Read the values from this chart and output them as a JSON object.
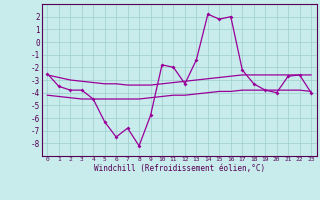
{
  "x": [
    0,
    1,
    2,
    3,
    4,
    5,
    6,
    7,
    8,
    9,
    10,
    11,
    12,
    13,
    14,
    15,
    16,
    17,
    18,
    19,
    20,
    21,
    22,
    23
  ],
  "line_main": [
    -2.5,
    -3.5,
    -3.8,
    -3.8,
    -4.5,
    -6.3,
    -7.5,
    -6.8,
    -8.2,
    -5.8,
    -1.8,
    -2.0,
    -3.3,
    -1.4,
    2.2,
    1.8,
    2.0,
    -2.2,
    -3.3,
    -3.8,
    -4.0,
    -2.7,
    -2.6,
    -4.0
  ],
  "line_upper": [
    -2.6,
    -2.8,
    -3.0,
    -3.1,
    -3.2,
    -3.3,
    -3.3,
    -3.4,
    -3.4,
    -3.4,
    -3.3,
    -3.2,
    -3.1,
    -3.0,
    -2.9,
    -2.8,
    -2.7,
    -2.6,
    -2.6,
    -2.6,
    -2.6,
    -2.6,
    -2.6,
    -2.6
  ],
  "line_lower": [
    -4.2,
    -4.3,
    -4.4,
    -4.5,
    -4.5,
    -4.5,
    -4.5,
    -4.5,
    -4.5,
    -4.4,
    -4.3,
    -4.2,
    -4.2,
    -4.1,
    -4.0,
    -3.9,
    -3.9,
    -3.8,
    -3.8,
    -3.8,
    -3.8,
    -3.8,
    -3.8,
    -3.9
  ],
  "ylim": [
    -9,
    3
  ],
  "yticks": [
    -8,
    -7,
    -6,
    -5,
    -4,
    -3,
    -2,
    -1,
    0,
    1,
    2
  ],
  "xticks": [
    0,
    1,
    2,
    3,
    4,
    5,
    6,
    7,
    8,
    9,
    10,
    11,
    12,
    13,
    14,
    15,
    16,
    17,
    18,
    19,
    20,
    21,
    22,
    23
  ],
  "xlabel": "Windchill (Refroidissement éolien,°C)",
  "bg_color": "#c8ecec",
  "line_color": "#990099",
  "grid_color": "#9dcdcd"
}
